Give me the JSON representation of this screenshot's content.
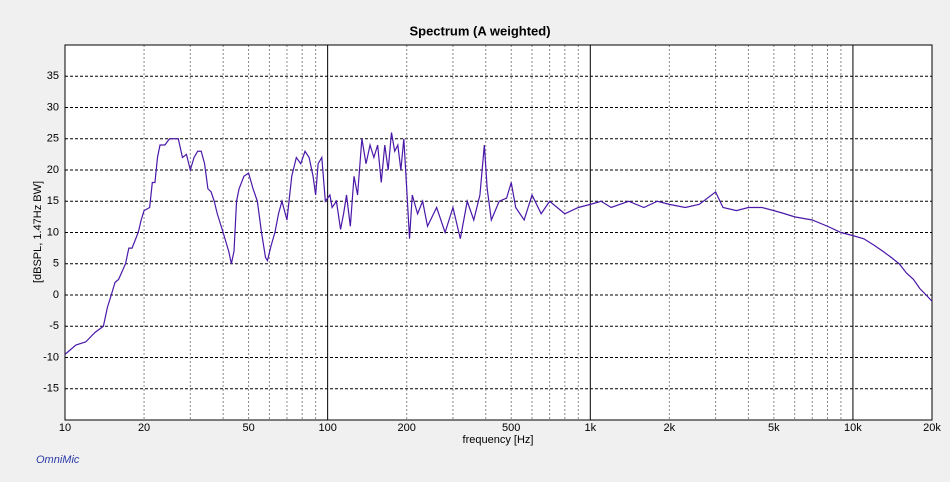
{
  "chart_data": {
    "type": "line",
    "title": "Spectrum (A weighted)",
    "x_label": "frequency [Hz]",
    "y_label": "[dBSPL, 1.47Hz BW]",
    "brand": "OmniMic",
    "xscale": "log",
    "xlim": [
      10,
      20000
    ],
    "ylim": [
      -20,
      40
    ],
    "xticks": [
      10,
      20,
      50,
      100,
      200,
      500,
      {
        "value": 1000,
        "label": "1k"
      },
      {
        "value": 2000,
        "label": "2k"
      },
      {
        "value": 5000,
        "label": "5k"
      },
      {
        "value": 10000,
        "label": "10k"
      },
      {
        "value": 20000,
        "label": "20k"
      }
    ],
    "xgrid": [
      30,
      40,
      60,
      70,
      80,
      90,
      300,
      400,
      600,
      700,
      800,
      900,
      3000,
      4000,
      6000,
      7000,
      8000,
      9000
    ],
    "yticks": [
      -15,
      -10,
      -5,
      0,
      5,
      10,
      15,
      20,
      25,
      30,
      35
    ],
    "grid": true,
    "series": [
      {
        "name": "Spectrum",
        "color": "#4a18a8",
        "x": [
          10,
          11,
          12,
          13,
          14,
          14.5,
          15,
          15.5,
          16,
          17,
          17.5,
          18,
          19,
          19.5,
          20,
          21,
          21.5,
          22,
          22.5,
          23,
          24,
          25,
          27,
          28,
          29,
          30,
          31,
          32,
          33,
          34,
          35,
          36,
          37,
          38,
          40,
          42,
          43,
          44,
          45,
          46,
          48,
          50,
          52,
          54,
          56,
          58,
          59,
          61,
          63,
          65,
          67,
          70,
          73,
          76,
          79,
          82,
          85,
          88,
          90,
          92,
          95,
          98,
          102,
          104,
          108,
          112,
          115,
          118,
          122,
          126,
          130,
          135,
          140,
          145,
          150,
          155,
          160,
          165,
          170,
          175,
          180,
          185,
          190,
          195,
          200,
          205,
          210,
          220,
          230,
          240,
          260,
          280,
          300,
          320,
          340,
          360,
          380,
          395,
          405,
          420,
          450,
          480,
          500,
          520,
          560,
          600,
          650,
          700,
          800,
          900,
          1000,
          1100,
          1200,
          1400,
          1600,
          1800,
          2000,
          2300,
          2600,
          3000,
          3200,
          3600,
          4000,
          4500,
          5000,
          5500,
          6000,
          7000,
          8000,
          9000,
          10000,
          11000,
          12000,
          13000,
          14000,
          15000,
          16000,
          17000,
          18000,
          19000,
          20000
        ],
        "values": [
          -9.5,
          -8,
          -7.5,
          -6,
          -5,
          -2,
          0,
          2,
          2.5,
          5,
          7.5,
          7.5,
          10,
          12,
          13.5,
          14,
          18,
          18,
          22,
          24,
          24,
          25,
          25,
          22,
          22.5,
          20,
          22,
          23,
          23,
          21,
          17,
          16.5,
          15,
          13,
          10,
          7,
          5,
          7,
          15,
          17,
          19,
          19.5,
          17,
          15,
          10,
          6,
          5.5,
          8,
          10,
          13,
          15,
          12,
          19,
          22,
          21,
          23,
          22,
          19,
          16,
          21,
          22,
          15,
          16,
          14,
          15,
          10.5,
          13,
          16,
          11,
          19,
          16,
          25,
          21,
          24,
          22,
          24,
          18,
          24,
          20,
          26,
          23,
          24,
          20,
          25,
          17,
          9,
          16,
          13,
          15,
          11,
          14,
          10,
          14,
          9,
          15,
          12,
          16,
          24,
          17,
          12,
          15,
          15.5,
          18,
          14,
          12,
          16,
          13,
          15,
          13,
          14,
          14.5,
          15,
          14,
          15,
          14,
          15,
          14.5,
          14,
          14.5,
          16.5,
          14,
          13.5,
          14,
          14,
          13.5,
          13,
          12.5,
          12,
          11,
          10,
          9.5,
          9,
          8,
          7,
          6,
          5,
          3.5,
          2.5,
          1,
          0,
          -1
        ]
      }
    ]
  }
}
